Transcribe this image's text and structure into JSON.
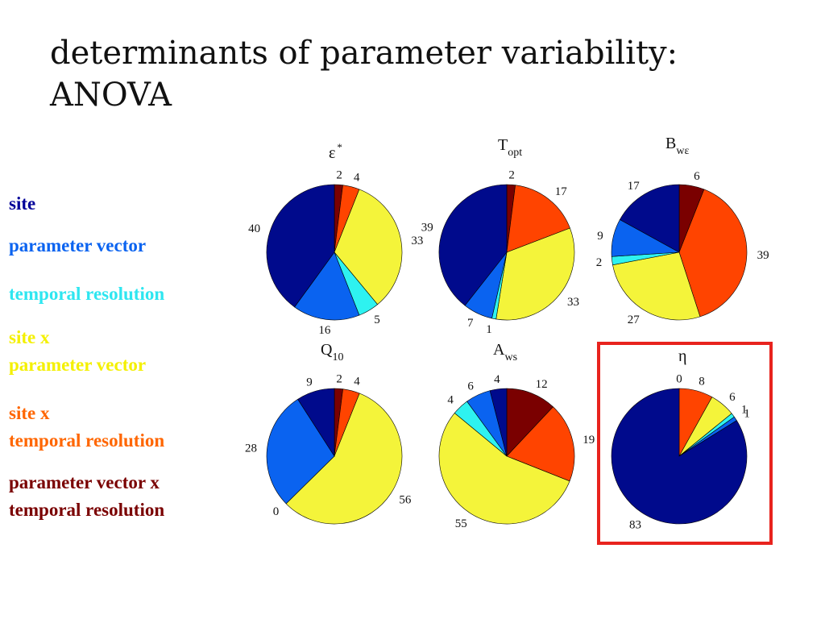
{
  "slide": {
    "title_line1": "determinants of parameter variability:",
    "title_line2": "ANOVA"
  },
  "legend": [
    {
      "lines": [
        "site"
      ],
      "color": "#000099"
    },
    {
      "lines": [
        "parameter vector"
      ],
      "color": "#0a63f0"
    },
    {
      "lines": [
        "temporal resolution"
      ],
      "color": "#2ee6f0"
    },
    {
      "lines": [
        "site x",
        "parameter vector"
      ],
      "color": "#f4f000"
    },
    {
      "lines": [
        "site x",
        "temporal resolution"
      ],
      "color": "#ff6600"
    },
    {
      "lines": [
        "parameter vector x",
        "temporal resolution"
      ],
      "color": "#7a0000"
    }
  ],
  "chart_data": [
    {
      "type": "pie",
      "title": {
        "main": "ε",
        "sup": "*",
        "sub": ""
      },
      "slices": [
        {
          "series": "parameter vector x temporal resolution",
          "value": 2,
          "color": "#7a0000"
        },
        {
          "series": "site x temporal resolution",
          "value": 4,
          "color": "#ff4400"
        },
        {
          "series": "site x parameter vector",
          "value": 33,
          "color": "#f4f43a"
        },
        {
          "series": "temporal resolution",
          "value": 5,
          "color": "#2ef2f0"
        },
        {
          "series": "parameter vector",
          "value": 16,
          "color": "#0a63f0"
        },
        {
          "series": "site",
          "value": 40,
          "color": "#000a8c"
        }
      ]
    },
    {
      "type": "pie",
      "title": {
        "main": "T",
        "sup": "",
        "sub": "opt"
      },
      "slices": [
        {
          "series": "parameter vector x temporal resolution",
          "value": 2,
          "color": "#7a0000"
        },
        {
          "series": "site x temporal resolution",
          "value": 17,
          "color": "#ff4400"
        },
        {
          "series": "site x parameter vector",
          "value": 33,
          "color": "#f4f43a"
        },
        {
          "series": "temporal resolution",
          "value": 1,
          "color": "#2ef2f0"
        },
        {
          "series": "parameter vector",
          "value": 7,
          "color": "#0a63f0"
        },
        {
          "series": "site",
          "value": 39,
          "color": "#000a8c"
        }
      ]
    },
    {
      "type": "pie",
      "title": {
        "main": "B",
        "sup": "",
        "sub": "wε"
      },
      "slices": [
        {
          "series": "parameter vector x temporal resolution",
          "value": 6,
          "color": "#7a0000"
        },
        {
          "series": "site x temporal resolution",
          "value": 39,
          "color": "#ff4400"
        },
        {
          "series": "site x parameter vector",
          "value": 27,
          "color": "#f4f43a"
        },
        {
          "series": "temporal resolution",
          "value": 2,
          "color": "#2ef2f0"
        },
        {
          "series": "parameter vector",
          "value": 9,
          "color": "#0a63f0"
        },
        {
          "series": "site",
          "value": 17,
          "color": "#000a8c"
        }
      ]
    },
    {
      "type": "pie",
      "title": {
        "main": "Q",
        "sup": "",
        "sub": "10"
      },
      "slices": [
        {
          "series": "parameter vector x temporal resolution",
          "value": 2,
          "color": "#7a0000"
        },
        {
          "series": "site x temporal resolution",
          "value": 4,
          "color": "#ff4400"
        },
        {
          "series": "site x parameter vector",
          "value": 56,
          "color": "#f4f43a"
        },
        {
          "series": "temporal resolution",
          "value": 0,
          "color": "#2ef2f0"
        },
        {
          "series": "parameter vector",
          "value": 28,
          "color": "#0a63f0"
        },
        {
          "series": "site",
          "value": 9,
          "color": "#000a8c"
        }
      ]
    },
    {
      "type": "pie",
      "title": {
        "main": "A",
        "sup": "",
        "sub": "ws"
      },
      "slices": [
        {
          "series": "parameter vector x temporal resolution",
          "value": 12,
          "color": "#7a0000"
        },
        {
          "series": "site x temporal resolution",
          "value": 19,
          "color": "#ff4400"
        },
        {
          "series": "site x parameter vector",
          "value": 55,
          "color": "#f4f43a"
        },
        {
          "series": "temporal resolution",
          "value": 4,
          "color": "#2ef2f0"
        },
        {
          "series": "parameter vector",
          "value": 6,
          "color": "#0a63f0"
        },
        {
          "series": "site",
          "value": 4,
          "color": "#000a8c"
        }
      ]
    },
    {
      "type": "pie",
      "title": {
        "main": "η",
        "sup": "",
        "sub": ""
      },
      "highlight_color": "#e8231e",
      "slices": [
        {
          "series": "parameter vector x temporal resolution",
          "value": 0,
          "color": "#7a0000"
        },
        {
          "series": "site x temporal resolution",
          "value": 8,
          "color": "#ff4400"
        },
        {
          "series": "site x parameter vector",
          "value": 6,
          "color": "#f4f43a"
        },
        {
          "series": "temporal resolution",
          "value": 1,
          "color": "#2ef2f0"
        },
        {
          "series": "parameter vector",
          "value": 1,
          "color": "#0a63f0"
        },
        {
          "series": "site",
          "value": 83,
          "color": "#000a8c"
        }
      ]
    }
  ]
}
